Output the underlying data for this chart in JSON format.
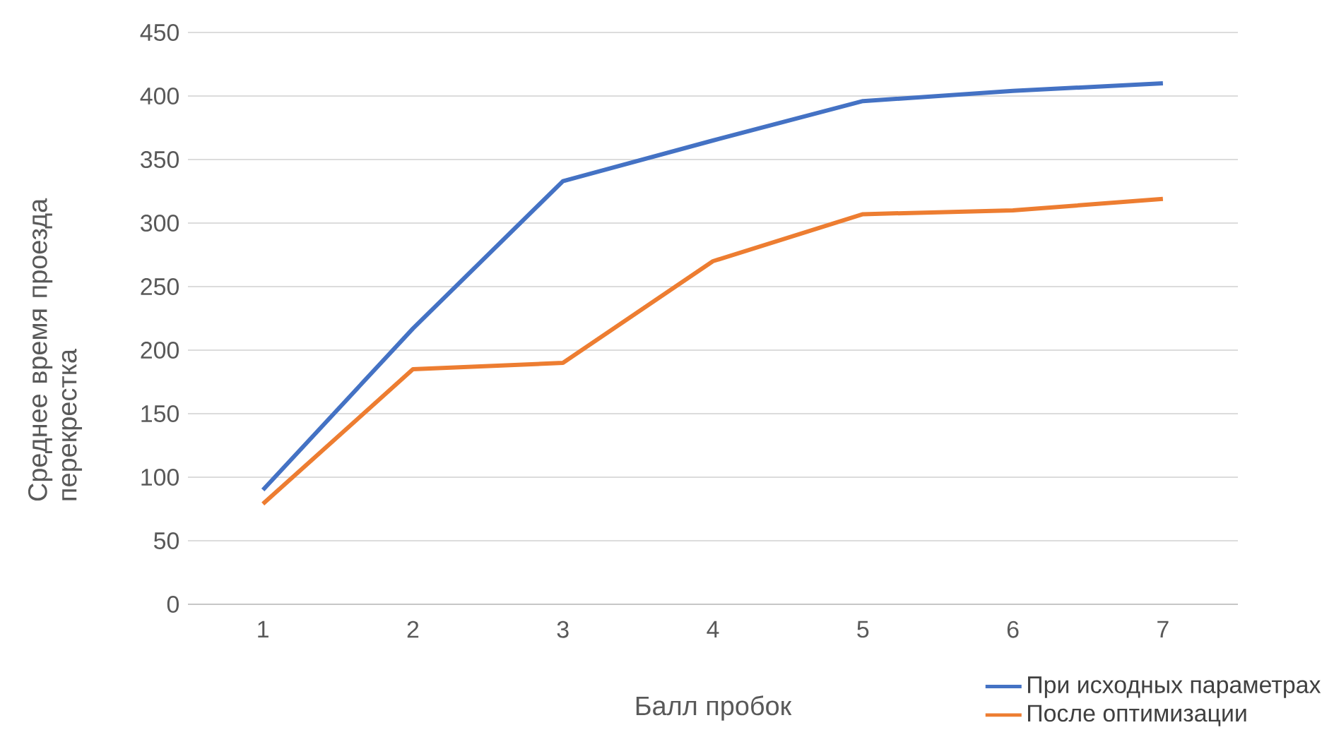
{
  "chart_data": {
    "type": "line",
    "xlabel": "Балл пробок",
    "ylabel": "Среднее время проезда перекрестка",
    "categories": [
      "1",
      "2",
      "3",
      "4",
      "5",
      "6",
      "7"
    ],
    "series": [
      {
        "name": "При исходных параметрах",
        "color": "#4472c4",
        "values": [
          90,
          217,
          333,
          365,
          396,
          404,
          410
        ]
      },
      {
        "name": "После оптимизации",
        "color": "#ed7d31",
        "values": [
          79,
          185,
          190,
          270,
          307,
          310,
          319
        ]
      }
    ],
    "ylim": [
      0,
      450
    ],
    "yticks": [
      0,
      50,
      100,
      150,
      200,
      250,
      300,
      350,
      400,
      450
    ],
    "grid": "y",
    "legend": "bottom right",
    "marker": "none",
    "line_style": "solid"
  }
}
